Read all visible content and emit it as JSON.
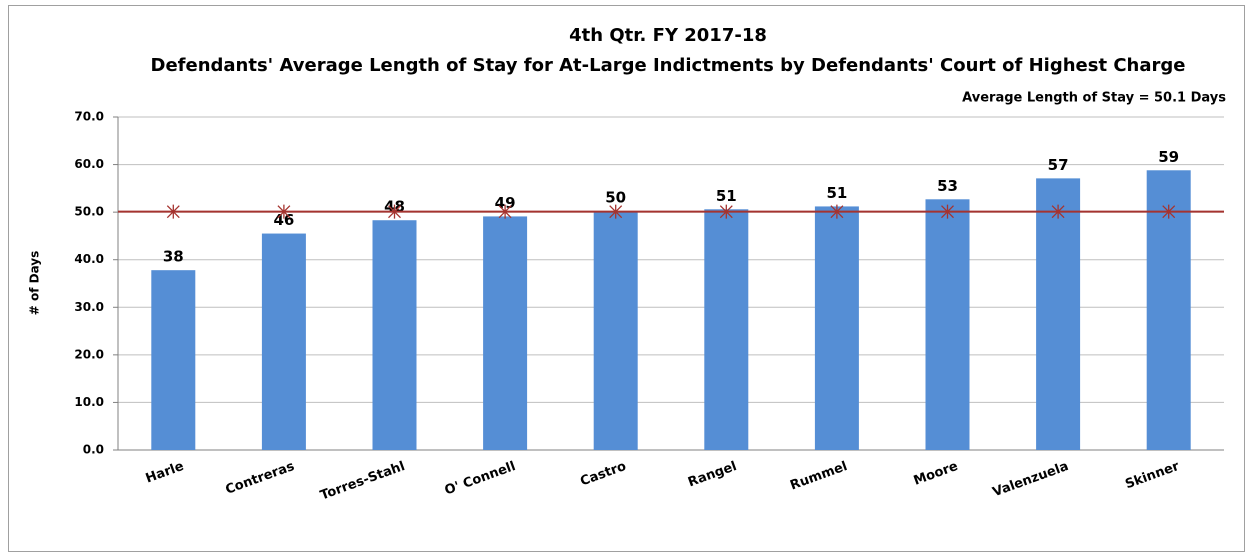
{
  "chart_data": {
    "type": "bar",
    "title": "4th Qtr. FY 2017-18",
    "subtitle": "Defendants' Average Length of Stay for At-Large Indictments by Defendants' Court of Highest Charge",
    "annotation": "Average Length of Stay = 50.1 Days",
    "y_label": "# of Days",
    "categories": [
      "Harle",
      "Contreras",
      "Torres-Stahl",
      "O' Connell",
      "Castro",
      "Rangel",
      "Rummel",
      "Moore",
      "Valenzuela",
      "Skinner"
    ],
    "values": [
      37.8,
      45.5,
      48.3,
      49.1,
      50.2,
      50.6,
      51.2,
      52.7,
      57.1,
      58.8
    ],
    "value_labels": [
      "38",
      "46",
      "48",
      "49",
      "50",
      "51",
      "51",
      "53",
      "57",
      "59"
    ],
    "color": "#558ed5",
    "average": 50.1,
    "average_color": "#a5332f",
    "ylim": [
      0,
      70
    ],
    "yticks": [
      {
        "value": 0,
        "label": "0.0"
      },
      {
        "value": 10,
        "label": "10.0"
      },
      {
        "value": 20,
        "label": "20.0"
      },
      {
        "value": 30,
        "label": "30.0"
      },
      {
        "value": 40,
        "label": "40.0"
      },
      {
        "value": 50,
        "label": "50.0"
      },
      {
        "value": 60,
        "label": "60.0"
      },
      {
        "value": 70,
        "label": "70.0"
      }
    ],
    "grid": true
  }
}
